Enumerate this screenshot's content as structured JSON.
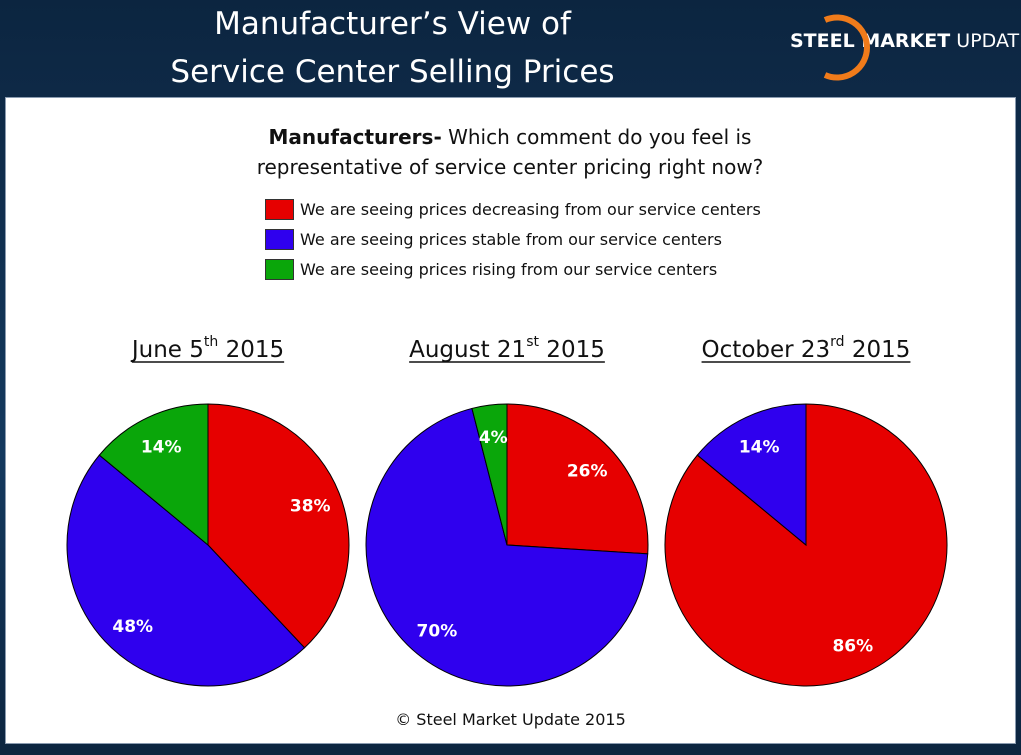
{
  "header": {
    "title_lines": [
      "Manufacturer’s View of",
      "Service Center Selling Prices"
    ]
  },
  "logo": {
    "bold": "STEEL MARKET",
    "rest": "UPDATE"
  },
  "question": {
    "bold": "Manufacturers-",
    "text": "Which comment do you feel is representative of service center pricing right now?"
  },
  "legend": {
    "labels": [
      "We are seeing prices decreasing from our service centers",
      "We are seeing prices stable from our service centers",
      "We are seeing prices rising from our service centers"
    ],
    "colors": [
      "#e60000",
      "#2f00ee",
      "#0aa60a"
    ]
  },
  "chart_data": [
    {
      "type": "pie",
      "title": {
        "main": "June 5",
        "sup": "th",
        "rest": "2015"
      },
      "values": [
        38,
        48,
        14
      ],
      "value_labels": [
        "38%",
        "48%",
        "14%"
      ]
    },
    {
      "type": "pie",
      "title": {
        "main": "August 21",
        "sup": "st",
        "rest": "2015"
      },
      "values": [
        26,
        70,
        4
      ],
      "value_labels": [
        "26%",
        "70%",
        "4%"
      ]
    },
    {
      "type": "pie",
      "title": {
        "main": "October 23",
        "sup": "rd",
        "rest": "2015"
      },
      "values": [
        86,
        14,
        null
      ],
      "value_labels": [
        "86%",
        "14%",
        null
      ]
    }
  ],
  "footer": "© Steel Market Update 2015"
}
